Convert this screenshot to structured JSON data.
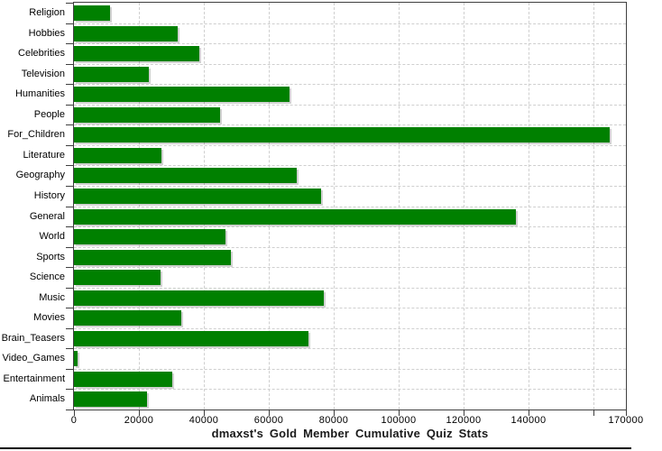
{
  "title": "dmaxst's Gold Member Cumulative Quiz Stats",
  "chart_data": {
    "type": "bar",
    "orientation": "horizontal",
    "title": "dmaxst's Gold Member Cumulative Quiz Stats",
    "categories": [
      "Religion",
      "Hobbies",
      "Celebrities",
      "Television",
      "Humanities",
      "People",
      "For_Children",
      "Literature",
      "Geography",
      "History",
      "General",
      "World",
      "Sports",
      "Science",
      "Music",
      "Movies",
      "Brain_Teasers",
      "Video_Games",
      "Entertainment",
      "Animals"
    ],
    "values": [
      11000,
      32000,
      38500,
      23000,
      66500,
      45000,
      165000,
      27000,
      68500,
      76000,
      136000,
      46800,
      48400,
      26800,
      77000,
      33000,
      72200,
      1000,
      30200,
      22600
    ],
    "xlim": [
      0,
      170000
    ],
    "x_ticks": [
      {
        "value": 0,
        "label": "0"
      },
      {
        "value": 20000,
        "label": "20000"
      },
      {
        "value": 40000,
        "label": "40000"
      },
      {
        "value": 60000,
        "label": "60000"
      },
      {
        "value": 80000,
        "label": "80000"
      },
      {
        "value": 100000,
        "label": "100000"
      },
      {
        "value": 120000,
        "label": "120000"
      },
      {
        "value": 140000,
        "label": "140000"
      },
      {
        "value": 160000,
        "label": ""
      },
      {
        "value": 170000,
        "label": "170000"
      }
    ],
    "grid": "dashed, vertical at ticks and horizontal at category boundaries",
    "legend": "none"
  },
  "colors": {
    "bar_fill": "#008000",
    "bar_shadow": "rgba(0,0,0,0.18)",
    "grid_line": "#cfcfcf",
    "axis_line": "#3f3f3f",
    "text": "#000000",
    "bottom_rule": "#000000"
  }
}
